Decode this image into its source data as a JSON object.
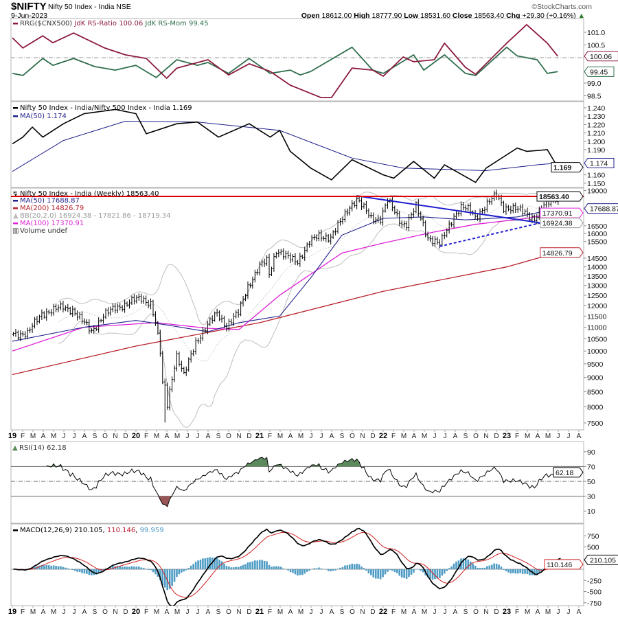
{
  "header": {
    "symbol": "$NIFTY",
    "name": "Nifty 50 Index - India NSE",
    "date": "9-Jun-2023",
    "credit": "©StockCharts.com",
    "open_label": "Open",
    "open": "18612.00",
    "high_label": "High",
    "high": "18777.90",
    "low_label": "Low",
    "low": "18531.60",
    "close_label": "Close",
    "close": "18563.40",
    "chg_label": "Chg",
    "chg": "+29.30 (+0.16%)",
    "chg_arrow": "▲"
  },
  "legends": {
    "rrg": {
      "prefix": "RRG($CNX500)",
      "ratio": "JdK RS-Ratio 100.06",
      "mom": "JdK RS-Mom 99.45"
    },
    "ratio": {
      "line": "Nifty 50 Index - India/Nifty 500 Index - India 1.169",
      "ma": "MA(50) 1.174"
    },
    "price": {
      "title": "Nifty 50 Index - India (Weekly) 18563.40",
      "ma50": "MA(50) 17688.87",
      "ma200": "MA(200) 14826.79",
      "bb": "BB(20,2.0) 16924.38 - 17821.86 - 18719.34",
      "ma100": "MA(100) 17370.91",
      "volume": "Volume undef"
    },
    "rsi": "RSI(14) 62.18",
    "macd": {
      "name": "MACD(12,26,9) 210.105",
      "signal": "110.146",
      "hist": "99.959",
      "sep": ", "
    }
  },
  "colors": {
    "rs_ratio": "#8b1a3c",
    "rs_mom": "#2f6e4c",
    "ma50": "#1e1e8a",
    "ma100": "#e020d8",
    "ma200": "#b8202a",
    "bb": "#bdbdbd",
    "resistance": "#e00000",
    "trendline": "#1f1fd0",
    "macd_hist": "#4e9cc4",
    "macd_signal": "#d02020",
    "rsi_overbought": "#5c8a5c",
    "rsi_oversold": "#9a5656"
  },
  "x_axis": {
    "labels": [
      "19",
      "F",
      "M",
      "A",
      "M",
      "J",
      "J",
      "A",
      "S",
      "O",
      "N",
      "D",
      "20",
      "F",
      "M",
      "A",
      "M",
      "J",
      "J",
      "A",
      "S",
      "O",
      "N",
      "D",
      "21",
      "F",
      "M",
      "A",
      "M",
      "J",
      "J",
      "A",
      "S",
      "O",
      "N",
      "D",
      "22",
      "F",
      "M",
      "A",
      "M",
      "J",
      "J",
      "A",
      "S",
      "O",
      "N",
      "D",
      "23",
      "F",
      "M",
      "A",
      "M",
      "J",
      "J",
      "A"
    ],
    "start": "2019-01"
  },
  "chart_data": [
    {
      "type": "line",
      "title": "RRG($CNX500)",
      "ylim": [
        98.3,
        101.5
      ],
      "y_ticks": [
        "101.0",
        "100.5",
        "99.0",
        "98.5"
      ],
      "reference_line": 100,
      "series": [
        {
          "name": "JdK RS-Ratio",
          "last": "100.06",
          "points": [
            [
              "2019-01",
              100.78
            ],
            [
              "2019-02",
              100.38
            ],
            [
              "2019-04",
              100.86
            ],
            [
              "2019-05",
              100.59
            ],
            [
              "2019-07",
              100.97
            ],
            [
              "2019-10",
              100.38
            ],
            [
              "2019-12",
              100.11
            ],
            [
              "2020-02",
              99.97
            ],
            [
              "2020-04",
              99.19
            ],
            [
              "2020-05",
              99.59
            ],
            [
              "2020-08",
              99.92
            ],
            [
              "2020-10",
              99.32
            ],
            [
              "2020-12",
              99.76
            ],
            [
              "2021-02",
              99.46
            ],
            [
              "2021-04",
              98.92
            ],
            [
              "2021-07",
              98.43
            ],
            [
              "2021-08",
              98.43
            ],
            [
              "2021-10",
              99.59
            ],
            [
              "2021-12",
              99.51
            ],
            [
              "2022-01",
              99.27
            ],
            [
              "2022-03",
              100.03
            ],
            [
              "2022-04",
              99.84
            ],
            [
              "2022-06",
              99.92
            ],
            [
              "2022-07",
              100.57
            ],
            [
              "2022-09",
              99.62
            ],
            [
              "2022-10",
              99.35
            ],
            [
              "2023-01",
              100.57
            ],
            [
              "2023-03",
              101.3
            ],
            [
              "2023-05",
              100.57
            ],
            [
              "2023-06",
              100.06
            ]
          ]
        },
        {
          "name": "JdK RS-Mom",
          "last": "99.45",
          "points": [
            [
              "2019-01",
              99.38
            ],
            [
              "2019-02",
              99.3
            ],
            [
              "2019-04",
              99.97
            ],
            [
              "2019-05",
              99.7
            ],
            [
              "2019-07",
              99.97
            ],
            [
              "2019-09",
              99.65
            ],
            [
              "2019-11",
              99.51
            ],
            [
              "2020-01",
              99.7
            ],
            [
              "2020-03",
              99.22
            ],
            [
              "2020-05",
              99.92
            ],
            [
              "2020-07",
              99.7
            ],
            [
              "2020-08",
              99.81
            ],
            [
              "2020-10",
              99.38
            ],
            [
              "2020-12",
              99.97
            ],
            [
              "2021-02",
              99.38
            ],
            [
              "2021-04",
              99.51
            ],
            [
              "2021-05",
              99.32
            ],
            [
              "2021-06",
              99.46
            ],
            [
              "2021-10",
              100.41
            ],
            [
              "2021-12",
              99.51
            ],
            [
              "2022-01",
              99.38
            ],
            [
              "2022-04",
              100.11
            ],
            [
              "2022-05",
              99.51
            ],
            [
              "2022-07",
              100.11
            ],
            [
              "2022-09",
              99.38
            ],
            [
              "2022-10",
              99.3
            ],
            [
              "2023-01",
              100.41
            ],
            [
              "2023-02",
              100.07
            ],
            [
              "2023-04",
              99.92
            ],
            [
              "2023-05",
              99.38
            ],
            [
              "2023-06",
              99.45
            ]
          ]
        }
      ]
    },
    {
      "type": "line",
      "title": "Nifty 50 Index - India/Nifty 500 Index - India",
      "ylim": [
        1.145,
        1.245
      ],
      "y_ticks": [
        "1.240",
        "1.230",
        "1.220",
        "1.210",
        "1.200",
        "1.190",
        "1.160",
        "1.150"
      ],
      "series": [
        {
          "name": "Ratio",
          "last": "1.169",
          "points": [
            [
              "2019-01",
              1.197
            ],
            [
              "2019-02",
              1.205
            ],
            [
              "2019-03",
              1.217
            ],
            [
              "2019-04",
              1.205
            ],
            [
              "2019-06",
              1.221
            ],
            [
              "2019-08",
              1.233
            ],
            [
              "2019-11",
              1.238
            ],
            [
              "2020-01",
              1.233
            ],
            [
              "2020-02",
              1.209
            ],
            [
              "2020-05",
              1.221
            ],
            [
              "2020-07",
              1.223
            ],
            [
              "2020-09",
              1.205
            ],
            [
              "2020-12",
              1.221
            ],
            [
              "2021-02",
              1.205
            ],
            [
              "2021-03",
              1.213
            ],
            [
              "2021-04",
              1.188
            ],
            [
              "2021-06",
              1.168
            ],
            [
              "2021-08",
              1.154
            ],
            [
              "2021-10",
              1.178
            ],
            [
              "2022-01",
              1.16
            ],
            [
              "2022-02",
              1.156
            ],
            [
              "2022-04",
              1.176
            ],
            [
              "2022-06",
              1.156
            ],
            [
              "2022-07",
              1.172
            ],
            [
              "2022-10",
              1.151
            ],
            [
              "2022-11",
              1.168
            ],
            [
              "2023-02",
              1.192
            ],
            [
              "2023-03",
              1.188
            ],
            [
              "2023-05",
              1.19
            ],
            [
              "2023-06",
              1.169
            ]
          ]
        },
        {
          "name": "MA(50)",
          "last": "1.174",
          "points": [
            [
              "2019-01",
              1.164
            ],
            [
              "2019-06",
              1.201
            ],
            [
              "2019-12",
              1.224
            ],
            [
              "2020-07",
              1.223
            ],
            [
              "2021-03",
              1.213
            ],
            [
              "2021-10",
              1.18
            ],
            [
              "2022-03",
              1.168
            ],
            [
              "2022-11",
              1.165
            ],
            [
              "2023-04",
              1.172
            ],
            [
              "2023-06",
              1.174
            ]
          ]
        }
      ]
    },
    {
      "type": "ohlc",
      "title": "Nifty 50 Index - India (Weekly) 18563.40",
      "scale": "log",
      "ylim": [
        7300,
        19300
      ],
      "y_ticks": [
        "19000",
        "16500",
        "16000",
        "15500",
        "14500",
        "14000",
        "13500",
        "13000",
        "12500",
        "12000",
        "11500",
        "11000",
        "10500",
        "10000",
        "9500",
        "9000",
        "8500",
        "8000",
        "7500"
      ],
      "weekly_close_anchors": [
        [
          "2019-01-04",
          10730
        ],
        [
          "2019-02-15",
          10720
        ],
        [
          "2019-03-29",
          11620
        ],
        [
          "2019-04-26",
          11750
        ],
        [
          "2019-05-31",
          11920
        ],
        [
          "2019-06-28",
          11790
        ],
        [
          "2019-07-26",
          11280
        ],
        [
          "2019-08-23",
          10830
        ],
        [
          "2019-09-27",
          11510
        ],
        [
          "2019-10-31",
          11880
        ],
        [
          "2019-11-29",
          12050
        ],
        [
          "2019-12-27",
          12245
        ],
        [
          "2020-01-17",
          12350
        ],
        [
          "2020-02-14",
          12100
        ],
        [
          "2020-02-28",
          11200
        ],
        [
          "2020-03-13",
          9950
        ],
        [
          "2020-03-20",
          8750
        ],
        [
          "2020-03-27",
          8660
        ],
        [
          "2020-04-03",
          8080
        ],
        [
          "2020-04-30",
          9860
        ],
        [
          "2020-05-22",
          9040
        ],
        [
          "2020-06-26",
          10380
        ],
        [
          "2020-07-31",
          11070
        ],
        [
          "2020-08-28",
          11650
        ],
        [
          "2020-09-25",
          11050
        ],
        [
          "2020-10-30",
          11640
        ],
        [
          "2020-11-27",
          12970
        ],
        [
          "2020-12-31",
          13980
        ],
        [
          "2021-01-22",
          14370
        ],
        [
          "2021-01-29",
          13630
        ],
        [
          "2021-02-19",
          14980
        ],
        [
          "2021-03-26",
          14500
        ],
        [
          "2021-04-23",
          14340
        ],
        [
          "2021-05-28",
          15430
        ],
        [
          "2021-06-25",
          15860
        ],
        [
          "2021-07-30",
          15760
        ],
        [
          "2021-08-27",
          16700
        ],
        [
          "2021-09-24",
          17850
        ],
        [
          "2021-10-15",
          18340
        ],
        [
          "2021-11-26",
          17030
        ],
        [
          "2021-12-24",
          17000
        ],
        [
          "2022-01-14",
          18250
        ],
        [
          "2022-02-25",
          16650
        ],
        [
          "2022-03-11",
          16630
        ],
        [
          "2022-04-08",
          17780
        ],
        [
          "2022-05-13",
          15780
        ],
        [
          "2022-06-17",
          15290
        ],
        [
          "2022-07-29",
          17160
        ],
        [
          "2022-08-19",
          17760
        ],
        [
          "2022-09-16",
          17530
        ],
        [
          "2022-09-30",
          17090
        ],
        [
          "2022-10-28",
          17790
        ],
        [
          "2022-12-02",
          18700
        ],
        [
          "2022-12-23",
          17800
        ],
        [
          "2023-01-27",
          17600
        ],
        [
          "2023-02-24",
          17460
        ],
        [
          "2023-03-24",
          16950
        ],
        [
          "2023-04-28",
          18070
        ],
        [
          "2023-05-26",
          18500
        ],
        [
          "2023-06-09",
          18563.4
        ]
      ],
      "notable_lows": [
        [
          "2020-03-27",
          7511
        ]
      ],
      "moving_averages": [
        {
          "name": "MA(50)",
          "last": "17688.87",
          "points": [
            [
              "2019-01",
              10400
            ],
            [
              "2019-08",
              11000
            ],
            [
              "2020-01",
              11300
            ],
            [
              "2020-04",
              11100
            ],
            [
              "2020-08",
              10800
            ],
            [
              "2020-11",
              11200
            ],
            [
              "2021-03",
              11500
            ],
            [
              "2021-06",
              13400
            ],
            [
              "2021-09",
              15900
            ],
            [
              "2022-01",
              17000
            ],
            [
              "2022-05",
              17100
            ],
            [
              "2022-09",
              16900
            ],
            [
              "2023-02",
              17100
            ],
            [
              "2023-06",
              17689
            ]
          ]
        },
        {
          "name": "MA(100)",
          "last": "17370.91",
          "points": [
            [
              "2019-01",
              10000
            ],
            [
              "2019-08",
              11000
            ],
            [
              "2020-03",
              11200
            ],
            [
              "2020-08",
              10950
            ],
            [
              "2020-11",
              10900
            ],
            [
              "2021-03",
              12500
            ],
            [
              "2021-09",
              14800
            ],
            [
              "2022-01",
              15400
            ],
            [
              "2022-06",
              16100
            ],
            [
              "2022-10",
              16600
            ],
            [
              "2023-03",
              17000
            ],
            [
              "2023-06",
              17371
            ]
          ]
        },
        {
          "name": "MA(200)",
          "last": "14826.79",
          "points": [
            [
              "2019-01",
              9100
            ],
            [
              "2020-01",
              10200
            ],
            [
              "2021-01",
              11200
            ],
            [
              "2022-01",
              12700
            ],
            [
              "2023-01",
              14000
            ],
            [
              "2023-06",
              14827
            ]
          ]
        }
      ],
      "bollinger_last": [
        "16924.38",
        "17821.86",
        "18719.34"
      ],
      "resistance_level": 18563.4,
      "trendlines": [
        {
          "style": "solid",
          "from": [
            "2021-10-15",
            18600
          ],
          "to": [
            "2023-06-09",
            16500
          ]
        },
        {
          "style": "dashed",
          "from": [
            "2022-06-17",
            15200
          ],
          "to": [
            "2023-08-01",
            17300
          ]
        }
      ]
    },
    {
      "type": "line",
      "title": "RSI(14)",
      "last": "62.18",
      "ylim": [
        0,
        100
      ],
      "y_ticks": [
        "90",
        "70",
        "50",
        "30",
        "10"
      ],
      "levels": [
        70,
        50,
        30
      ]
    },
    {
      "type": "line+bar",
      "title": "MACD(12,26,9)",
      "ylim": [
        -800,
        850
      ],
      "y_ticks": [
        "750",
        "500",
        "-250",
        "-500",
        "-750"
      ],
      "last": {
        "macd": "210.105",
        "signal": "110.146",
        "histogram": "99.959"
      }
    }
  ]
}
